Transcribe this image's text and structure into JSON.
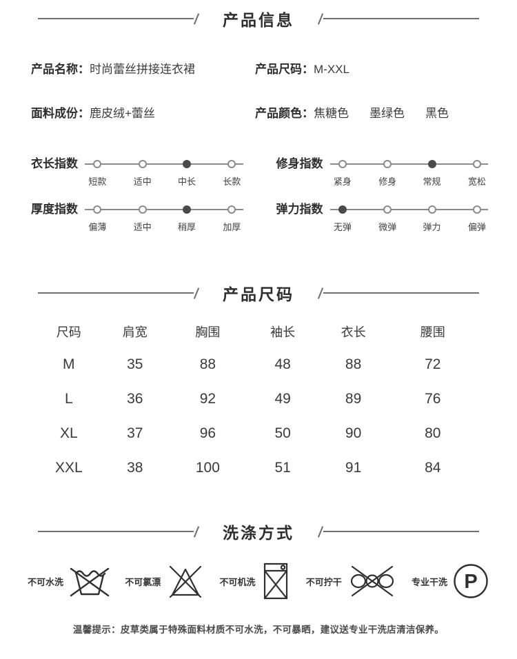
{
  "sections": {
    "info": {
      "title": "产品信息"
    },
    "size": {
      "title": "产品尺码"
    },
    "wash": {
      "title": "洗涤方式"
    }
  },
  "info_fields": [
    {
      "label": "产品名称：",
      "value": "时尚蕾丝拼接连衣裙"
    },
    {
      "label": "产品尺码：",
      "value": "M-XXL"
    },
    {
      "label": "面料成份：",
      "value": "鹿皮绒+蕾丝"
    },
    {
      "label": "产品颜色：",
      "values": [
        "焦糖色",
        "墨绿色",
        "黑色"
      ]
    }
  ],
  "indexes": [
    {
      "label": "衣长指数",
      "options": [
        "短款",
        "适中",
        "中长",
        "长款"
      ],
      "selected": 2
    },
    {
      "label": "修身指数",
      "options": [
        "紧身",
        "修身",
        "常规",
        "宽松"
      ],
      "selected": 2
    },
    {
      "label": "厚度指数",
      "options": [
        "偏薄",
        "适中",
        "稍厚",
        "加厚"
      ],
      "selected": 2
    },
    {
      "label": "弹力指数",
      "options": [
        "无弹",
        "微弹",
        "弹力",
        "偏弹"
      ],
      "selected": 0
    }
  ],
  "size_table": {
    "headers": [
      "尺码",
      "肩宽",
      "胸围",
      "袖长",
      "衣长",
      "腰围"
    ],
    "rows": [
      [
        "M",
        "35",
        "88",
        "48",
        "88",
        "72"
      ],
      [
        "L",
        "36",
        "92",
        "49",
        "89",
        "76"
      ],
      [
        "XL",
        "37",
        "96",
        "50",
        "90",
        "80"
      ],
      [
        "XXL",
        "38",
        "100",
        "51",
        "91",
        "84"
      ]
    ]
  },
  "wash_items": [
    {
      "label": "不可水洗",
      "icon": "no-hand-wash-icon"
    },
    {
      "label": "不可氯漂",
      "icon": "no-bleach-icon"
    },
    {
      "label": "不可机洗",
      "icon": "no-machine-wash-icon"
    },
    {
      "label": "不可拧干",
      "icon": "no-wring-icon"
    },
    {
      "label": "专业干洗",
      "icon": "dry-clean-p-icon",
      "letter": "P"
    }
  ],
  "tip": "温馨提示：皮草类属于特殊面料材质不可水洗，不可暴晒，建议送专业干洗店清洁保养。",
  "colors": {
    "text": "#3b3b3b",
    "line": "#6d6d6d",
    "dot_selected": "#4a4a4a",
    "dot_outline": "#8a8a8a"
  }
}
